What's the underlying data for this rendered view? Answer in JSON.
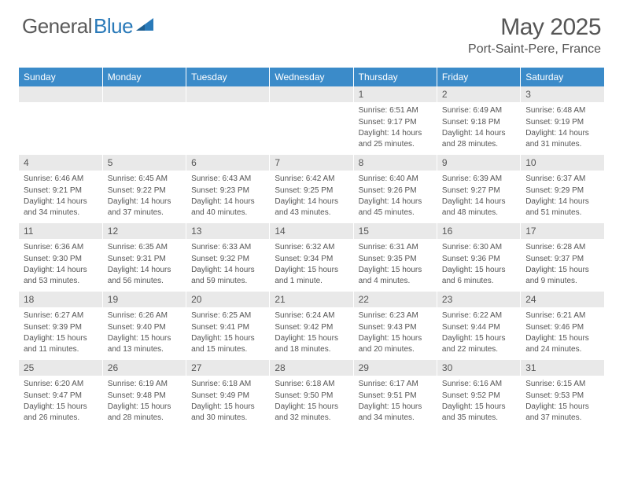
{
  "logo": {
    "text1": "General",
    "text2": "Blue"
  },
  "title": "May 2025",
  "location": "Port-Saint-Pere, France",
  "colors": {
    "header_bg": "#3b8bc9",
    "header_text": "#ffffff",
    "daynum_bg": "#e9e9e9",
    "text": "#555555",
    "logo_gray": "#5a5a5a",
    "logo_blue": "#2a7ab9",
    "page_bg": "#ffffff"
  },
  "typography": {
    "title_fontsize": 30,
    "location_fontsize": 16,
    "logo_fontsize": 26,
    "weekday_fontsize": 12,
    "daynum_fontsize": 12,
    "body_fontsize": 10
  },
  "weekdays": [
    "Sunday",
    "Monday",
    "Tuesday",
    "Wednesday",
    "Thursday",
    "Friday",
    "Saturday"
  ],
  "weeks": [
    [
      null,
      null,
      null,
      null,
      {
        "n": "1",
        "sr": "6:51 AM",
        "ss": "9:17 PM",
        "dl": "14 hours and 25 minutes."
      },
      {
        "n": "2",
        "sr": "6:49 AM",
        "ss": "9:18 PM",
        "dl": "14 hours and 28 minutes."
      },
      {
        "n": "3",
        "sr": "6:48 AM",
        "ss": "9:19 PM",
        "dl": "14 hours and 31 minutes."
      }
    ],
    [
      {
        "n": "4",
        "sr": "6:46 AM",
        "ss": "9:21 PM",
        "dl": "14 hours and 34 minutes."
      },
      {
        "n": "5",
        "sr": "6:45 AM",
        "ss": "9:22 PM",
        "dl": "14 hours and 37 minutes."
      },
      {
        "n": "6",
        "sr": "6:43 AM",
        "ss": "9:23 PM",
        "dl": "14 hours and 40 minutes."
      },
      {
        "n": "7",
        "sr": "6:42 AM",
        "ss": "9:25 PM",
        "dl": "14 hours and 43 minutes."
      },
      {
        "n": "8",
        "sr": "6:40 AM",
        "ss": "9:26 PM",
        "dl": "14 hours and 45 minutes."
      },
      {
        "n": "9",
        "sr": "6:39 AM",
        "ss": "9:27 PM",
        "dl": "14 hours and 48 minutes."
      },
      {
        "n": "10",
        "sr": "6:37 AM",
        "ss": "9:29 PM",
        "dl": "14 hours and 51 minutes."
      }
    ],
    [
      {
        "n": "11",
        "sr": "6:36 AM",
        "ss": "9:30 PM",
        "dl": "14 hours and 53 minutes."
      },
      {
        "n": "12",
        "sr": "6:35 AM",
        "ss": "9:31 PM",
        "dl": "14 hours and 56 minutes."
      },
      {
        "n": "13",
        "sr": "6:33 AM",
        "ss": "9:32 PM",
        "dl": "14 hours and 59 minutes."
      },
      {
        "n": "14",
        "sr": "6:32 AM",
        "ss": "9:34 PM",
        "dl": "15 hours and 1 minute."
      },
      {
        "n": "15",
        "sr": "6:31 AM",
        "ss": "9:35 PM",
        "dl": "15 hours and 4 minutes."
      },
      {
        "n": "16",
        "sr": "6:30 AM",
        "ss": "9:36 PM",
        "dl": "15 hours and 6 minutes."
      },
      {
        "n": "17",
        "sr": "6:28 AM",
        "ss": "9:37 PM",
        "dl": "15 hours and 9 minutes."
      }
    ],
    [
      {
        "n": "18",
        "sr": "6:27 AM",
        "ss": "9:39 PM",
        "dl": "15 hours and 11 minutes."
      },
      {
        "n": "19",
        "sr": "6:26 AM",
        "ss": "9:40 PM",
        "dl": "15 hours and 13 minutes."
      },
      {
        "n": "20",
        "sr": "6:25 AM",
        "ss": "9:41 PM",
        "dl": "15 hours and 15 minutes."
      },
      {
        "n": "21",
        "sr": "6:24 AM",
        "ss": "9:42 PM",
        "dl": "15 hours and 18 minutes."
      },
      {
        "n": "22",
        "sr": "6:23 AM",
        "ss": "9:43 PM",
        "dl": "15 hours and 20 minutes."
      },
      {
        "n": "23",
        "sr": "6:22 AM",
        "ss": "9:44 PM",
        "dl": "15 hours and 22 minutes."
      },
      {
        "n": "24",
        "sr": "6:21 AM",
        "ss": "9:46 PM",
        "dl": "15 hours and 24 minutes."
      }
    ],
    [
      {
        "n": "25",
        "sr": "6:20 AM",
        "ss": "9:47 PM",
        "dl": "15 hours and 26 minutes."
      },
      {
        "n": "26",
        "sr": "6:19 AM",
        "ss": "9:48 PM",
        "dl": "15 hours and 28 minutes."
      },
      {
        "n": "27",
        "sr": "6:18 AM",
        "ss": "9:49 PM",
        "dl": "15 hours and 30 minutes."
      },
      {
        "n": "28",
        "sr": "6:18 AM",
        "ss": "9:50 PM",
        "dl": "15 hours and 32 minutes."
      },
      {
        "n": "29",
        "sr": "6:17 AM",
        "ss": "9:51 PM",
        "dl": "15 hours and 34 minutes."
      },
      {
        "n": "30",
        "sr": "6:16 AM",
        "ss": "9:52 PM",
        "dl": "15 hours and 35 minutes."
      },
      {
        "n": "31",
        "sr": "6:15 AM",
        "ss": "9:53 PM",
        "dl": "15 hours and 37 minutes."
      }
    ]
  ],
  "labels": {
    "sunrise_prefix": "Sunrise: ",
    "sunset_prefix": "Sunset: ",
    "daylight_prefix": "Daylight: "
  }
}
